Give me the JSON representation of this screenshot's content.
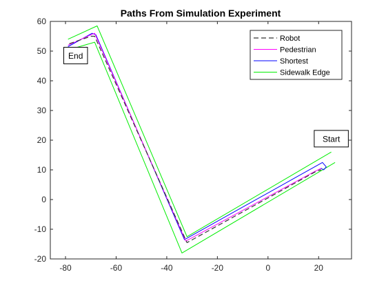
{
  "chart_data": {
    "type": "line",
    "title": "Paths From Simulation Experiment",
    "xlabel": "",
    "ylabel": "",
    "xlim": [
      -86,
      33
    ],
    "ylim": [
      -20,
      60
    ],
    "xticks": [
      -80,
      -60,
      -40,
      -20,
      0,
      20
    ],
    "yticks": [
      -20,
      -10,
      0,
      10,
      20,
      30,
      40,
      50,
      60
    ],
    "grid": false,
    "legend_position": "top-right",
    "series": [
      {
        "name": "Robot",
        "color": "#333333",
        "style": "dashed",
        "x": [
          -78.5,
          -70,
          -68.5,
          -32,
          19,
          21
        ],
        "y": [
          52.5,
          55,
          55,
          -14.5,
          9.5,
          10
        ]
      },
      {
        "name": "Pedestrian",
        "color": "#ff00ff",
        "style": "solid",
        "x": [
          -79,
          -70,
          -68.5,
          -32.5,
          18.5,
          21
        ],
        "y": [
          52,
          55.5,
          56,
          -14,
          9.5,
          10.5
        ]
      },
      {
        "name": "Shortest",
        "color": "#0000ff",
        "style": "solid",
        "x": [
          -79,
          -69.5,
          -68,
          -33,
          21.5,
          23,
          22,
          21,
          20
        ],
        "y": [
          51.5,
          56,
          55.5,
          -13.5,
          12.5,
          11,
          10,
          10.5,
          10
        ]
      },
      {
        "name": "Sidewalk Edge",
        "color": "#00ee00",
        "style": "solid",
        "segments": [
          {
            "x": [
              -79,
              -67.5,
              -32,
              25
            ],
            "y": [
              54,
              58.5,
              -12.5,
              16
            ]
          },
          {
            "x": [
              -78.5,
              -68.5,
              -34,
              26.5
            ],
            "y": [
              50.5,
              53,
              -18,
              12.5
            ]
          }
        ]
      }
    ],
    "annotations": [
      {
        "text": "End",
        "x": -76,
        "y": 48.5
      },
      {
        "text": "Start",
        "x": 25,
        "y": 20.5
      }
    ]
  }
}
